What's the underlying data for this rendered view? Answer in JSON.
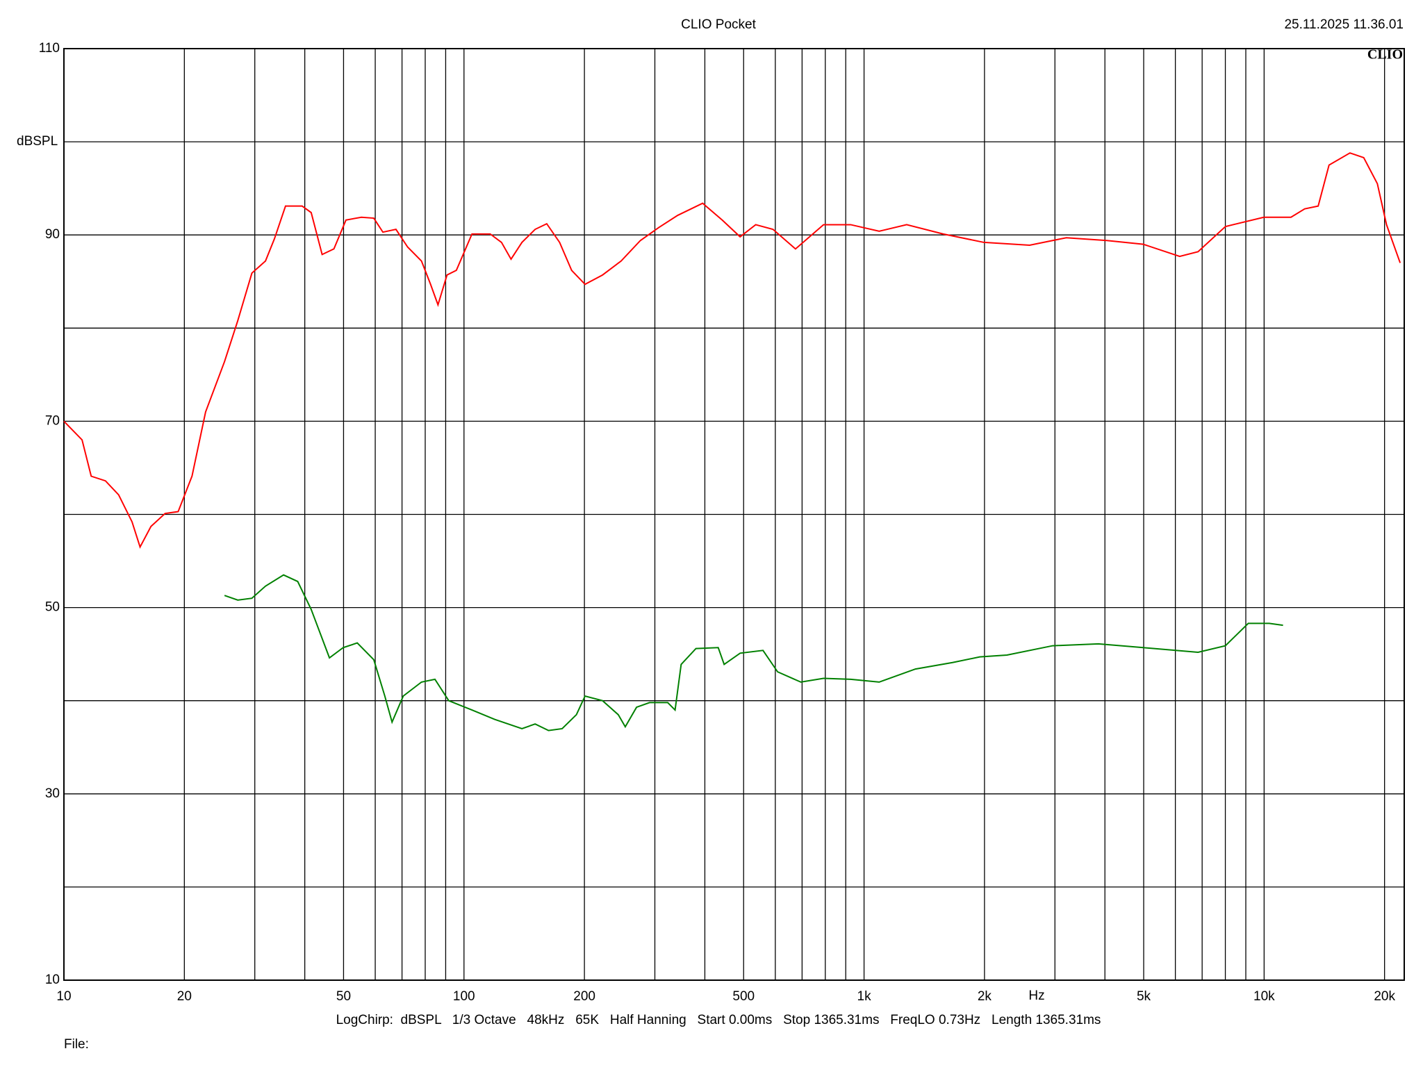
{
  "chart_data": {
    "type": "line",
    "title": "CLIO Pocket",
    "timestamp": "25.11.2025 11.36.01",
    "logo": "CLIO",
    "y_label": "dBSPL",
    "x_label": "Hz",
    "settings_line": "LogChirp:  dBSPL   1/3 Octave   48kHz   65K   Half Hanning   Start 0.00ms   Stop 1365.31ms   FreqLO 0.73Hz   Length 1365.31ms",
    "file_label": "File:",
    "xscale": "log",
    "xlim": [
      10,
      22400
    ],
    "ylim": [
      10,
      110
    ],
    "xticks": [
      10,
      20,
      50,
      100,
      200,
      500,
      {
        "value": 1000,
        "label": "1k"
      },
      {
        "value": 2000,
        "label": "2k"
      },
      {
        "value": 5000,
        "label": "5k"
      },
      {
        "value": 10000,
        "label": "10k"
      },
      {
        "value": 20000,
        "label": "20k"
      }
    ],
    "xgrid": [
      30,
      40,
      60,
      70,
      80,
      90,
      300,
      400,
      600,
      700,
      800,
      900,
      3000,
      4000,
      6000,
      7000,
      8000,
      9000
    ],
    "yticks": [
      10,
      30,
      50,
      70,
      90,
      110
    ],
    "ygrid": [
      20,
      40,
      60,
      80,
      100
    ],
    "grid": true,
    "series": [
      {
        "color": "#ff0000",
        "x": [
          10,
          11.1,
          11.7,
          12.7,
          13.7,
          14.8,
          15.5,
          16.5,
          17.9,
          19.3,
          20.9,
          22.6,
          25.2,
          27.2,
          29.5,
          31.9,
          33.6,
          35.8,
          39.4,
          41.5,
          44.2,
          47.3,
          50.7,
          55.4,
          59.5,
          62.7,
          67.6,
          72.3,
          78.3,
          82.5,
          86.1,
          90.7,
          95.7,
          104.7,
          116.3,
          124.1,
          131.1,
          139.6,
          150.6,
          161,
          173.4,
          185.8,
          200.7,
          222,
          247,
          276,
          307,
          342,
          395,
          442,
          490,
          536,
          592,
          674,
          792,
          926,
          1091,
          1278,
          1578,
          1993,
          2593,
          3203,
          4046,
          4986,
          6151,
          6837,
          8002,
          9980,
          11670,
          12630,
          13650,
          14530,
          16390,
          17740,
          19190,
          20230,
          21880
        ],
        "values": [
          70,
          68,
          64.1,
          63.6,
          62.1,
          59.2,
          56.5,
          58.7,
          60.1,
          60.3,
          64.1,
          71,
          76.4,
          80.8,
          85.9,
          87.2,
          89.6,
          93.1,
          93.1,
          92.4,
          87.9,
          88.5,
          91.6,
          91.9,
          91.8,
          90.3,
          90.6,
          88.7,
          87.2,
          84.7,
          82.5,
          85.7,
          86.2,
          90.1,
          90.1,
          89.2,
          87.4,
          89.2,
          90.6,
          91.2,
          89.2,
          86.2,
          84.7,
          85.7,
          87.2,
          89.4,
          90.8,
          92.1,
          93.4,
          91.6,
          89.8,
          91.1,
          90.6,
          88.5,
          91.1,
          91.1,
          90.4,
          91.1,
          90.1,
          89.2,
          88.9,
          89.7,
          89.4,
          89,
          87.7,
          88.2,
          90.9,
          91.9,
          91.9,
          92.8,
          93.1,
          97.5,
          98.8,
          98.3,
          95.5,
          91.1,
          87
        ]
      },
      {
        "color": "#008000",
        "x": [
          25.2,
          27.2,
          29.5,
          31.9,
          35.4,
          38.4,
          41.5,
          46.1,
          49.9,
          54.1,
          59.5,
          63.4,
          66.1,
          70.5,
          78.3,
          84.6,
          91.6,
          104.7,
          119.3,
          139.6,
          150.6,
          162.7,
          175.9,
          191,
          200.7,
          222,
          243,
          253,
          270,
          291,
          323,
          337,
          349,
          380,
          432,
          447,
          490,
          559,
          608,
          695,
          792,
          926,
          1091,
          1344,
          1664,
          1946,
          2276,
          2961,
          3854,
          4986,
          6837,
          8002,
          9127,
          10300,
          11150
        ],
        "values": [
          51.3,
          50.8,
          51,
          52.3,
          53.5,
          52.8,
          49.8,
          44.6,
          45.7,
          46.2,
          44.4,
          40.5,
          37.7,
          40.5,
          42,
          42.3,
          40,
          39,
          38,
          37,
          37.5,
          36.8,
          37,
          38.5,
          40.5,
          40,
          38.5,
          37.2,
          39.3,
          39.8,
          39.8,
          39,
          43.9,
          45.6,
          45.7,
          43.9,
          45.1,
          45.4,
          43.1,
          42,
          42.4,
          42.3,
          42,
          43.4,
          44.1,
          44.7,
          44.9,
          45.9,
          46.1,
          45.7,
          45.2,
          45.9,
          48.3,
          48.3,
          48.1
        ]
      }
    ]
  }
}
